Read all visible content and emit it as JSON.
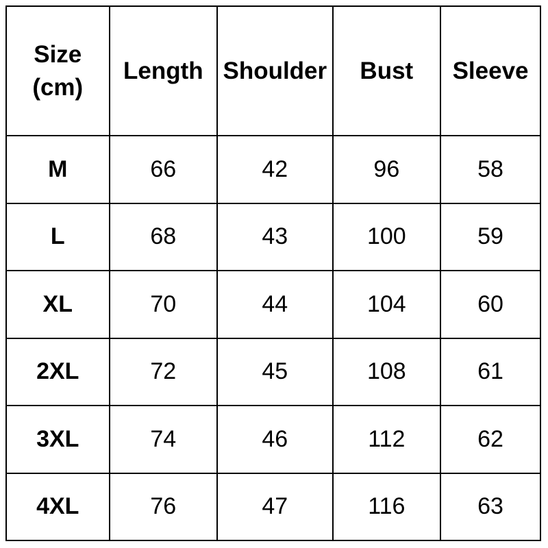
{
  "colors": {
    "background": "#ffffff",
    "border": "#000000",
    "text": "#000000"
  },
  "table": {
    "header": {
      "size_line1": "Size",
      "size_line2": "(cm)"
    }
  },
  "chart_data": {
    "type": "table",
    "columns": [
      "Size (cm)",
      "Length",
      "Shoulder",
      "Bust",
      "Sleeve"
    ],
    "rows": [
      [
        "M",
        66,
        42,
        96,
        58
      ],
      [
        "L",
        68,
        43,
        100,
        59
      ],
      [
        "XL",
        70,
        44,
        104,
        60
      ],
      [
        "2XL",
        72,
        45,
        108,
        61
      ],
      [
        "3XL",
        74,
        46,
        112,
        62
      ],
      [
        "4XL",
        76,
        47,
        116,
        63
      ]
    ],
    "layout": {
      "grid": "all-borders",
      "header_bold": true,
      "units": "cm"
    }
  }
}
